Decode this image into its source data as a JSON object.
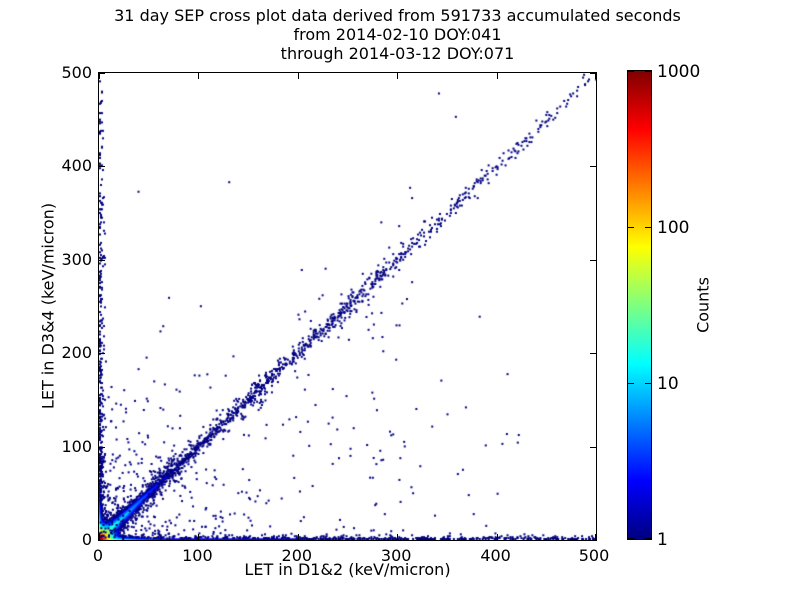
{
  "figure": {
    "background": "#ffffff"
  },
  "chart_data": {
    "type": "scatter",
    "title_lines": [
      "31 day SEP cross plot data derived from 591733 accumulated seconds",
      "from 2014-02-10 DOY:041",
      "through 2014-03-12 DOY:071"
    ],
    "xlabel": "LET in D1&2 (keV/micron)",
    "ylabel": "LET in D3&4 (keV/micron)",
    "xlim": [
      0,
      500
    ],
    "ylim": [
      0,
      500
    ],
    "xticks": [
      "0",
      "100",
      "200",
      "300",
      "400",
      "500"
    ],
    "yticks": [
      "0",
      "100",
      "200",
      "300",
      "400",
      "500"
    ],
    "grid": false,
    "marker_color_single_count": "#000080",
    "colorbar": {
      "label": "Counts",
      "scale": "log",
      "vmin": 1,
      "vmax": 1000,
      "tick_labels": [
        "1",
        "10",
        "100",
        "1000"
      ],
      "tick_values": [
        1,
        10,
        100,
        1000
      ],
      "colormap": "jet",
      "gradient_stops": [
        [
          "0%",
          "#000080"
        ],
        [
          "12.5%",
          "#0000ff"
        ],
        [
          "37.5%",
          "#00ffff"
        ],
        [
          "62.5%",
          "#ffff00"
        ],
        [
          "87.5%",
          "#ff0000"
        ],
        [
          "100%",
          "#800000"
        ]
      ],
      "position": "right"
    },
    "description": "2D-histogram cross plot: hot core (~1000 counts, red/orange) at origin, dense arms along both axes, diagonal band y=x out to ~165 keV/micron with a knot near (70,74), loose diagonal cluster near (240,240), sparse single-count (navy) events elsewhere.",
    "density_model": {
      "seed": 20140210,
      "heat": {
        "core": {
          "amp": 1300,
          "decay": 2.9
        },
        "x_arm": {
          "amp": 60,
          "y_decay": 1.1,
          "x_decay": 13,
          "tail_amp": 2.6,
          "tail_y_decay": 1.3,
          "tail_x_decay": 420
        },
        "y_arm": {
          "amp": 45,
          "x_decay": 1.1,
          "y_decay": 13,
          "tail_amp": 1.6,
          "tail_x_decay": 1.8,
          "tail_y_decay": 230
        },
        "diag_arm": {
          "amp": 40,
          "width": 3.0,
          "decay": 38,
          "tail_amp": 1.3,
          "tail_width": 5,
          "tail_decay": 480
        },
        "draw_threshold": 1.6,
        "speckle_scale": 0.45
      },
      "clusters": [
        {
          "name": "diagonal-knot",
          "type": "blob",
          "cx": 70,
          "cy": 74,
          "sx": 10,
          "sy": 9,
          "n": 70
        },
        {
          "name": "upper-diagonal-cluster",
          "type": "blob",
          "cx": 243,
          "cy": 240,
          "sx": 26,
          "sy": 20,
          "n": 46
        },
        {
          "name": "mid-diagonal-clump",
          "type": "blob",
          "cx": 150,
          "cy": 140,
          "sx": 14,
          "sy": 12,
          "n": 20
        },
        {
          "name": "lower-left-speckle",
          "type": "expdecay",
          "tx": 55,
          "ty": 45,
          "n": 330
        },
        {
          "name": "sparse-low-mid",
          "type": "uniform",
          "x0": 0,
          "x1": 430,
          "y0": 0,
          "y1": 185,
          "n": 80
        },
        {
          "name": "sparse-upper-left",
          "type": "uniform",
          "x0": 20,
          "x1": 310,
          "y0": 60,
          "y1": 265,
          "n": 24
        }
      ],
      "outlier_points": [
        [
          341,
          477
        ],
        [
          358,
          452
        ],
        [
          130,
          382
        ],
        [
          312,
          376
        ],
        [
          314,
          365
        ],
        [
          380,
          365
        ],
        [
          283,
          339
        ],
        [
          301,
          335
        ],
        [
          326,
          340
        ],
        [
          340,
          337
        ],
        [
          315,
          322
        ],
        [
          291,
          312
        ],
        [
          280,
          293
        ],
        [
          298,
          291
        ],
        [
          382,
          238
        ],
        [
          203,
          288
        ],
        [
          314,
          275
        ],
        [
          298,
          192
        ],
        [
          285,
          201
        ],
        [
          248,
          153
        ],
        [
          234,
          130
        ],
        [
          295,
          112
        ],
        [
          293,
          111
        ],
        [
          306,
          104
        ],
        [
          252,
          89
        ],
        [
          371,
          47
        ],
        [
          315,
          49
        ],
        [
          2,
          360
        ],
        [
          4,
          339
        ],
        [
          3,
          302
        ],
        [
          2,
          420
        ],
        [
          1,
          468
        ],
        [
          456,
          2
        ],
        [
          478,
          3
        ],
        [
          420,
          1
        ],
        [
          392,
          2
        ],
        [
          352,
          6
        ],
        [
          337,
          25
        ]
      ]
    }
  }
}
